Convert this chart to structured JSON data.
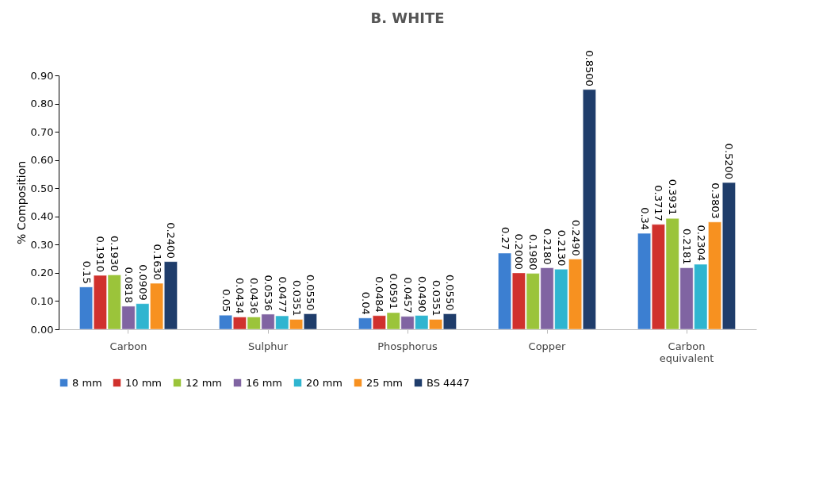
{
  "chart_data": {
    "type": "bar",
    "title": "B. WHITE",
    "ylabel": "% Composition",
    "categories": [
      "Carbon",
      "Sulphur",
      "Phosphorus",
      "Copper",
      "Carbon equivalent"
    ],
    "series": [
      {
        "name": "8 mm",
        "color": "#3c7fd1",
        "values": [
          0.15,
          0.05,
          0.04,
          0.27,
          0.34
        ],
        "value_labels": [
          "0.15",
          "0.05",
          "0.04",
          "0.27",
          "0.34"
        ]
      },
      {
        "name": "10 mm",
        "color": "#d0312d",
        "values": [
          0.191,
          0.0434,
          0.0484,
          0.2,
          0.3717
        ],
        "value_labels": [
          "0.1910",
          "0.0434",
          "0.0484",
          "0.2000",
          "0.3717"
        ]
      },
      {
        "name": "12 mm",
        "color": "#9bc43a",
        "values": [
          0.193,
          0.0436,
          0.0591,
          0.198,
          0.3931
        ],
        "value_labels": [
          "0.1930",
          "0.0436",
          "0.0591",
          "0.1980",
          "0.3931"
        ]
      },
      {
        "name": "16 mm",
        "color": "#8064a2",
        "values": [
          0.0818,
          0.0536,
          0.0457,
          0.218,
          0.2181
        ],
        "value_labels": [
          "0.0818",
          "0.0536",
          "0.0457",
          "0.2180",
          "0.2181"
        ]
      },
      {
        "name": "20 mm",
        "color": "#2fb5d0",
        "values": [
          0.0909,
          0.0477,
          0.049,
          0.213,
          0.2304
        ],
        "value_labels": [
          "0.0909",
          "0.0477",
          "0.0490",
          "0.2130",
          "0.2304"
        ]
      },
      {
        "name": "25 mm",
        "color": "#f79120",
        "values": [
          0.163,
          0.0351,
          0.0351,
          0.249,
          0.3803
        ],
        "value_labels": [
          "0.1630",
          "0.0351",
          "0.0351",
          "0.2490",
          "0.3803"
        ]
      },
      {
        "name": "BS 4447",
        "color": "#1f3d6b",
        "values": [
          0.24,
          0.055,
          0.055,
          0.85,
          0.52
        ],
        "value_labels": [
          "0.2400",
          "0.0550",
          "0.0550",
          "0.8500",
          "0.5200"
        ]
      }
    ],
    "ylim": [
      0,
      0.9
    ],
    "yticks": [
      {
        "value": 0,
        "label": "0.00"
      },
      {
        "value": 0.1,
        "label": "0.10"
      },
      {
        "value": 0.2,
        "label": "0.20"
      },
      {
        "value": 0.3,
        "label": "0.30"
      },
      {
        "value": 0.4,
        "label": "0.40"
      },
      {
        "value": 0.5,
        "label": "0.50"
      },
      {
        "value": 0.6,
        "label": "0.60"
      },
      {
        "value": 0.7,
        "label": "0.70"
      },
      {
        "value": 0.8,
        "label": "0.80"
      },
      {
        "value": 0.9,
        "label": "0.90"
      }
    ],
    "grid": false,
    "legend": "bottom"
  }
}
